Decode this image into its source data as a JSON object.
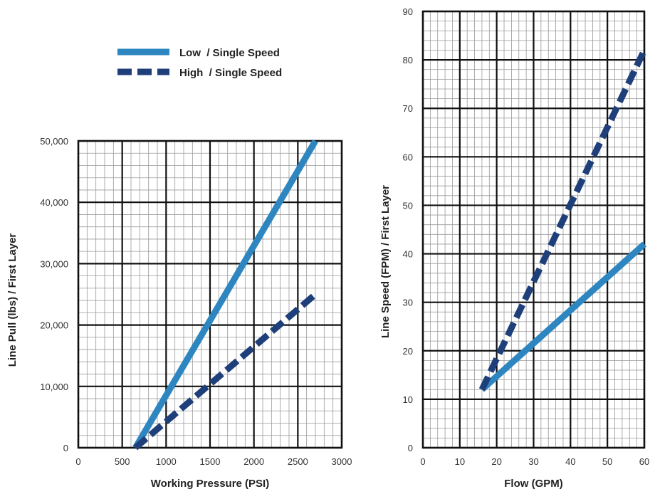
{
  "legend": {
    "items": [
      {
        "label": "Low  / Single Speed",
        "style": "solid",
        "color": "#2e86c1"
      },
      {
        "label": "High  / Single Speed",
        "style": "dashed",
        "color": "#1f3f7a"
      }
    ]
  },
  "chart_data": [
    {
      "type": "line",
      "title": "",
      "xlabel": "Working Pressure (PSI)",
      "ylabel": "Line Pull (lbs) / First Layer",
      "xlim": [
        0,
        3000
      ],
      "ylim": [
        0,
        50000
      ],
      "x_ticks": [
        0,
        500,
        1000,
        1500,
        2000,
        2500,
        3000
      ],
      "x_tick_labels": [
        "0",
        "500",
        "1000",
        "1500",
        "2000",
        "2500",
        "3000"
      ],
      "y_ticks": [
        0,
        10000,
        20000,
        30000,
        40000,
        50000
      ],
      "y_tick_labels": [
        "0",
        "10,000",
        "20,000",
        "30,000",
        "40,000",
        "50,000"
      ],
      "grid": true,
      "series": [
        {
          "name": "Low  / Single Speed",
          "style": "solid",
          "color": "#2e86c1",
          "points": [
            [
              650,
              0
            ],
            [
              2700,
              50000
            ]
          ]
        },
        {
          "name": "High  / Single Speed",
          "style": "dashed",
          "color": "#1f3f7a",
          "points": [
            [
              650,
              0
            ],
            [
              2700,
              25000
            ]
          ]
        }
      ]
    },
    {
      "type": "line",
      "title": "",
      "xlabel": "Flow (GPM)",
      "ylabel": "Line Speed (FPM) / First Layer",
      "xlim": [
        0,
        60
      ],
      "ylim": [
        0,
        90
      ],
      "x_ticks": [
        0,
        10,
        20,
        30,
        40,
        50,
        60
      ],
      "x_tick_labels": [
        "0",
        "10",
        "20",
        "30",
        "40",
        "50",
        "60"
      ],
      "y_ticks": [
        0,
        10,
        20,
        30,
        40,
        50,
        60,
        70,
        80,
        90
      ],
      "y_tick_labels": [
        "0",
        "10",
        "20",
        "30",
        "40",
        "50",
        "60",
        "70",
        "80",
        "90"
      ],
      "grid": true,
      "series": [
        {
          "name": "Low  / Single Speed",
          "style": "solid",
          "color": "#2e86c1",
          "points": [
            [
              16,
              12
            ],
            [
              60,
              42
            ]
          ]
        },
        {
          "name": "High  / Single Speed",
          "style": "dashed",
          "color": "#1f3f7a",
          "points": [
            [
              16,
              12
            ],
            [
              60,
              82
            ]
          ]
        }
      ]
    }
  ]
}
